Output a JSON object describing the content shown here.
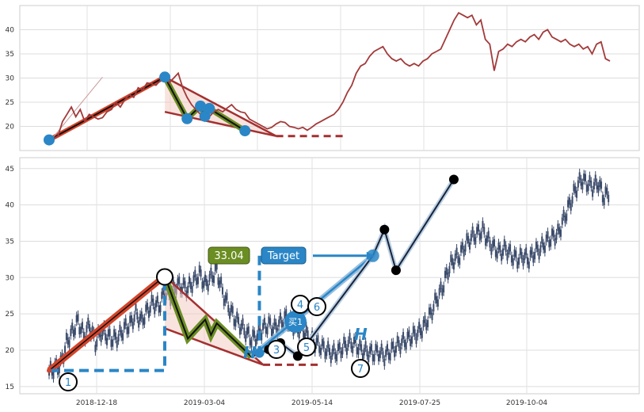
{
  "chart_data": [
    {
      "type": "line",
      "panel": "top",
      "ylim": [
        15,
        45
      ],
      "y_ticks": [
        20,
        25,
        30,
        35,
        40
      ],
      "grid": true,
      "series": [
        {
          "color": "#a33a3a",
          "values": [
            17,
            17.5,
            18,
            21,
            22.5,
            24,
            22,
            23.5,
            21,
            22.5,
            22,
            21.5,
            21.8,
            23,
            23.5,
            25,
            24,
            25.5,
            26.5,
            26,
            28,
            27.5,
            29,
            28.8,
            28.5,
            29.5,
            30.5,
            29,
            30,
            31,
            28,
            26,
            24.5,
            23.5,
            22.5,
            21.5,
            22,
            23,
            23.5,
            23,
            23.8,
            24.5,
            23.5,
            23,
            22.8,
            21.5,
            21,
            20.5,
            20,
            19.5,
            19.8,
            20.5,
            21,
            20.8,
            20,
            19.8,
            19.5,
            19.8,
            19.2,
            19.8,
            20.5,
            21,
            21.5,
            22,
            22.5,
            23.5,
            25,
            27,
            28.5,
            31,
            32.5,
            33,
            34.5,
            35.5,
            36,
            36.5,
            35,
            34,
            33.5,
            34,
            33,
            32.5,
            33,
            32.5,
            33.5,
            34,
            35,
            35.5,
            36,
            38,
            40,
            42,
            43.5,
            43,
            42.5,
            43,
            41,
            42,
            38,
            37,
            31.5,
            35.5,
            36,
            37,
            36.5,
            37.5,
            38,
            37.5,
            38.5,
            39,
            38,
            39.5,
            40,
            38.5,
            38,
            37.5,
            38,
            37,
            36.5,
            37,
            36,
            36.5,
            35,
            37,
            37.5,
            34,
            33.5
          ]
        }
      ],
      "annotation_points": [
        [
          0,
          17.2
        ],
        [
          26,
          30.2
        ],
        [
          31,
          21.6
        ],
        [
          34,
          24.2
        ],
        [
          35,
          22.1
        ],
        [
          36,
          23.7
        ],
        [
          44,
          19.1
        ]
      ],
      "channel_lines": [
        {
          "from": [
            0,
            17.2
          ],
          "to": [
            26,
            30.2
          ]
        },
        {
          "from": [
            26,
            30.2
          ],
          "to": [
            51,
            18
          ]
        },
        {
          "from": [
            26,
            23
          ],
          "to": [
            51,
            18
          ]
        }
      ],
      "target_dashed": {
        "from": [
          51,
          18
        ],
        "to": [
          66,
          18
        ]
      }
    },
    {
      "type": "line",
      "panel": "bottom",
      "ylim": [
        14,
        46.5
      ],
      "y_ticks": [
        15,
        20,
        25,
        30,
        35,
        40,
        45
      ],
      "x_ticks": [
        "2018-12-18",
        "2019-03-04",
        "2019-05-14",
        "2019-07-25",
        "2019-10-04"
      ],
      "grid": true,
      "series": [
        {
          "color": "#3a4a6a",
          "values": [
            17,
            17.5,
            18,
            21,
            22.5,
            24,
            22,
            23.5,
            21,
            22.5,
            22,
            21.5,
            21.8,
            23,
            23.5,
            25,
            24,
            25.5,
            26.5,
            26,
            28,
            27.5,
            29,
            28.8,
            28.5,
            29.5,
            30.5,
            29,
            30,
            31,
            28,
            26,
            24.5,
            23.5,
            22.5,
            21.5,
            22,
            23,
            23.5,
            23,
            23.8,
            24.5,
            23.5,
            23,
            22.8,
            21.5,
            21,
            20.5,
            20,
            19.5,
            19.8,
            20.5,
            21,
            20.8,
            20,
            19.8,
            19.5,
            19.8,
            19.2,
            19.8,
            20.5,
            21,
            21.5,
            22,
            22.5,
            23.5,
            25,
            27,
            28.5,
            31,
            32.5,
            33,
            34.5,
            35.5,
            36,
            36.5,
            35,
            34,
            33.5,
            34,
            33,
            32.5,
            33,
            32.5,
            33.5,
            34,
            35,
            35.5,
            36,
            38,
            40,
            42,
            43.5,
            43,
            42.5,
            43,
            41,
            42
          ]
        }
      ],
      "wave_points": [
        [
          0,
          17.2
        ],
        [
          20,
          30.2
        ],
        [
          24,
          21.6
        ],
        [
          27,
          24.2
        ],
        [
          28,
          22.1
        ],
        [
          29,
          23.7
        ],
        [
          35,
          19.1
        ],
        [
          38,
          20.1
        ],
        [
          40,
          21
        ],
        [
          43,
          19.2
        ],
        [
          56,
          33
        ],
        [
          58,
          36.6
        ],
        [
          60,
          31
        ],
        [
          70,
          43.5
        ]
      ],
      "labels": {
        "price_box": "33.04",
        "target_box": "Target",
        "buy_marker": "买1",
        "height_label": "H",
        "wave_numbers": [
          "1",
          "3",
          "4",
          "5",
          "6",
          "7"
        ]
      }
    }
  ]
}
